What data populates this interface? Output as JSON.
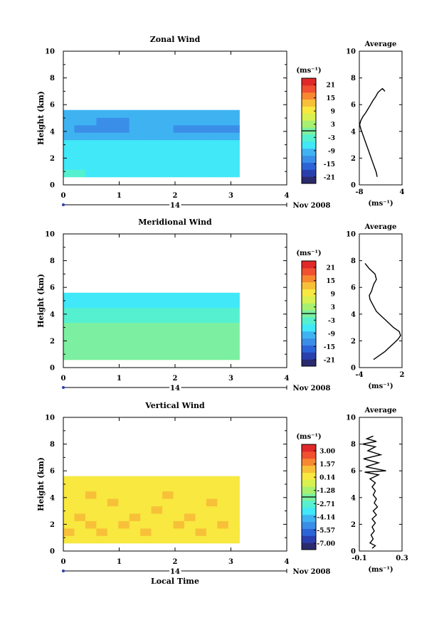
{
  "date_label": "Nov 2008",
  "date_day": "14",
  "local_time_label": "Local Time",
  "colorbar_unit": "(ms⁻¹)",
  "colors": {
    "scale": [
      "#2a2a6e",
      "#2a3fae",
      "#2c64d8",
      "#3b8ee8",
      "#3fb3f2",
      "#40e8f8",
      "#55f0d0",
      "#7cf0a0",
      "#a8f070",
      "#d8f050",
      "#f8e840",
      "#f8c038",
      "#f88830",
      "#f05030",
      "#e02828"
    ]
  },
  "chart_data": [
    {
      "type": "heatmap",
      "title": "Zonal Wind",
      "ylabel": "Height (km)",
      "xlabel": "",
      "x_ticks": [
        0,
        1,
        2,
        3,
        4
      ],
      "y_ticks": [
        0,
        2,
        4,
        6,
        8,
        10
      ],
      "xlim": [
        0,
        4
      ],
      "ylim": [
        0,
        10
      ],
      "colorbar": {
        "unit": "(ms⁻¹)",
        "ticks": [
          "21",
          "15",
          "9",
          "3",
          "-3",
          "-9",
          "-15",
          "-21"
        ],
        "range": [
          -24,
          24
        ]
      },
      "average": {
        "title": "Average",
        "xlim": [
          -8,
          4
        ],
        "x_ticks": [
          "-8",
          "4"
        ],
        "unit": "(ms⁻¹)",
        "profile": [
          [
            -3.0,
            0.6
          ],
          [
            -3.2,
            0.9
          ],
          [
            -3.6,
            1.2
          ],
          [
            -4.0,
            1.5
          ],
          [
            -4.4,
            1.8
          ],
          [
            -4.8,
            2.1
          ],
          [
            -5.2,
            2.4
          ],
          [
            -5.6,
            2.7
          ],
          [
            -6.0,
            3.0
          ],
          [
            -6.4,
            3.3
          ],
          [
            -6.8,
            3.6
          ],
          [
            -7.2,
            3.9
          ],
          [
            -7.6,
            4.2
          ],
          [
            -7.9,
            4.5
          ],
          [
            -7.6,
            4.8
          ],
          [
            -7.0,
            5.1
          ],
          [
            -6.2,
            5.4
          ],
          [
            -5.5,
            5.7
          ],
          [
            -4.2,
            6.3
          ],
          [
            -3.4,
            6.6
          ],
          [
            -2.8,
            6.9
          ],
          [
            -2.0,
            7.1
          ],
          [
            -1.5,
            7.2
          ],
          [
            -0.8,
            7.0
          ]
        ]
      },
      "field": [
        [
          -4,
          -4,
          -5,
          -5,
          -5,
          -6,
          -6,
          -6,
          -6,
          -6,
          -6,
          -6,
          -5,
          -5,
          -5,
          -5
        ],
        [
          -5,
          -5,
          -6,
          -6,
          -6,
          -6,
          -6,
          -5,
          -5,
          -5,
          -5,
          -5,
          -5,
          -5,
          -5,
          -5
        ],
        [
          -6,
          -6,
          -6,
          -6,
          -6,
          -6,
          -6,
          -6,
          -6,
          -5,
          -5,
          -5,
          -5,
          -5,
          -5,
          -5
        ],
        [
          -6,
          -7,
          -7,
          -7,
          -7,
          -7,
          -6,
          -6,
          -6,
          -6,
          -6,
          -6,
          -6,
          -6,
          -6,
          -6
        ],
        [
          -8,
          -8,
          -8,
          -8,
          -8,
          -8,
          -7,
          -7,
          -7,
          -7,
          -7,
          -7,
          -7,
          -8,
          -8,
          -8
        ],
        [
          -10,
          -10,
          -10,
          -10,
          -10,
          -10,
          -10,
          -10,
          -10,
          -10,
          -10,
          -10,
          -10,
          -11,
          -11,
          -11
        ],
        [
          -11,
          -12,
          -12,
          -12,
          -12,
          -12,
          -11,
          -11,
          -11,
          -11,
          -12,
          -12,
          -12,
          -12,
          -12,
          -12
        ],
        [
          -10,
          -11,
          -11,
          -12,
          -12,
          -12,
          -11,
          -10,
          -10,
          -10,
          -11,
          -11,
          -11,
          -11,
          -11,
          -11
        ],
        [
          -10,
          -10,
          -10,
          -11,
          -11,
          -10,
          -10,
          -10,
          -10,
          -10,
          -10,
          -10,
          -10,
          -10,
          -10,
          -10
        ]
      ]
    },
    {
      "type": "heatmap",
      "title": "Meridional Wind",
      "ylabel": "Height (km)",
      "xlabel": "",
      "x_ticks": [
        0,
        1,
        2,
        3,
        4
      ],
      "y_ticks": [
        0,
        2,
        4,
        6,
        8,
        10
      ],
      "xlim": [
        0,
        4
      ],
      "ylim": [
        0,
        10
      ],
      "colorbar": {
        "unit": "(ms⁻¹)",
        "ticks": [
          "21",
          "15",
          "9",
          "3",
          "-3",
          "-9",
          "-15",
          "-21"
        ],
        "range": [
          -24,
          24
        ]
      },
      "average": {
        "title": "Average",
        "xlim": [
          -4,
          2
        ],
        "x_ticks": [
          "-4",
          "2"
        ],
        "unit": "(ms⁻¹)",
        "profile": [
          [
            -2.0,
            0.6
          ],
          [
            -1.2,
            0.9
          ],
          [
            -0.4,
            1.2
          ],
          [
            0.2,
            1.5
          ],
          [
            0.8,
            1.8
          ],
          [
            1.4,
            2.1
          ],
          [
            1.8,
            2.4
          ],
          [
            1.6,
            2.7
          ],
          [
            0.8,
            3.0
          ],
          [
            0.2,
            3.3
          ],
          [
            -0.4,
            3.6
          ],
          [
            -1.0,
            3.9
          ],
          [
            -1.6,
            4.2
          ],
          [
            -1.9,
            4.5
          ],
          [
            -2.2,
            4.8
          ],
          [
            -2.5,
            5.1
          ],
          [
            -2.6,
            5.4
          ],
          [
            -2.3,
            5.7
          ],
          [
            -2.0,
            6.2
          ],
          [
            -1.6,
            6.6
          ],
          [
            -1.8,
            7.0
          ],
          [
            -2.6,
            7.4
          ],
          [
            -3.2,
            7.8
          ]
        ]
      },
      "field": [
        [
          -1,
          0,
          0,
          0,
          0,
          0,
          0,
          0,
          0,
          0,
          0,
          0,
          0,
          0,
          0,
          0
        ],
        [
          -1,
          -1,
          -1,
          -1,
          -1,
          -1,
          -1,
          -1,
          -1,
          -1,
          -1,
          -1,
          -1,
          -1,
          -1,
          -1
        ],
        [
          0,
          0,
          0,
          0,
          0,
          0,
          0,
          0,
          0,
          0,
          0,
          0,
          0,
          0,
          0,
          0
        ],
        [
          1,
          1,
          1,
          1,
          1,
          1,
          1,
          1,
          1,
          1,
          1,
          1,
          1,
          1,
          1,
          1
        ],
        [
          1,
          1,
          1,
          1,
          1,
          1,
          1,
          1,
          1,
          1,
          1,
          1,
          1,
          1,
          1,
          1
        ],
        [
          -3,
          -2,
          -2,
          -3,
          -3,
          -3,
          -2,
          -2,
          -3,
          -3,
          -2,
          -2,
          -3,
          -3,
          -3,
          -3
        ],
        [
          -4,
          -4,
          -4,
          -4,
          -4,
          -4,
          -4,
          -4,
          -4,
          -4,
          -4,
          -4,
          -4,
          -4,
          -4,
          -4
        ],
        [
          -5,
          -5,
          -5,
          -5,
          -5,
          -5,
          -5,
          -5,
          -5,
          -5,
          -5,
          -5,
          -5,
          -5,
          -5,
          -5
        ],
        [
          -5,
          -5,
          -5,
          -5,
          -5,
          -5,
          -5,
          -5,
          -5,
          -5,
          -5,
          -5,
          -5,
          -5,
          -5,
          -5
        ]
      ]
    },
    {
      "type": "heatmap",
      "title": "Vertical Wind",
      "ylabel": "Height (km)",
      "xlabel": "Local Time",
      "x_ticks": [
        0,
        1,
        2,
        3,
        4
      ],
      "y_ticks": [
        0,
        2,
        4,
        6,
        8,
        10
      ],
      "xlim": [
        0,
        4
      ],
      "ylim": [
        0,
        10
      ],
      "colorbar": {
        "unit": "(ms⁻¹)",
        "ticks": [
          "3.00",
          "1.57",
          "0.14",
          "-1.28",
          "-2.71",
          "-4.14",
          "-5.57",
          "-7.00"
        ],
        "range": [
          -7.7,
          3.7
        ]
      },
      "average": {
        "title": "Average",
        "xlim": [
          -0.1,
          0.3
        ],
        "x_ticks": [
          "-0.1",
          "0.3"
        ],
        "unit": "(ms⁻¹)",
        "profile": [
          [
            0.02,
            0.2
          ],
          [
            0.05,
            0.4
          ],
          [
            0.0,
            0.6
          ],
          [
            0.03,
            0.9
          ],
          [
            0.01,
            1.2
          ],
          [
            0.04,
            1.5
          ],
          [
            0.02,
            1.8
          ],
          [
            0.05,
            2.1
          ],
          [
            0.02,
            2.4
          ],
          [
            0.06,
            2.7
          ],
          [
            0.03,
            3.0
          ],
          [
            0.07,
            3.3
          ],
          [
            0.04,
            3.6
          ],
          [
            0.06,
            3.9
          ],
          [
            0.03,
            4.2
          ],
          [
            0.05,
            4.5
          ],
          [
            0.02,
            4.8
          ],
          [
            0.05,
            5.1
          ],
          [
            0.0,
            5.4
          ],
          [
            0.08,
            5.7
          ],
          [
            -0.05,
            5.9
          ],
          [
            0.15,
            6.0
          ],
          [
            -0.04,
            6.3
          ],
          [
            0.08,
            6.6
          ],
          [
            -0.06,
            6.9
          ],
          [
            0.1,
            7.2
          ],
          [
            -0.02,
            7.5
          ],
          [
            0.05,
            7.8
          ],
          [
            -0.07,
            8.0
          ],
          [
            0.06,
            8.2
          ],
          [
            -0.03,
            8.4
          ],
          [
            0.03,
            8.6
          ]
        ]
      },
      "field": [
        [
          0.5,
          0.5,
          0.5,
          0.5,
          0.5,
          0.5,
          0.5,
          0.5,
          0.5,
          0.5,
          0.5,
          0.5,
          0.5,
          0.5,
          0.5,
          0.5
        ],
        [
          0.8,
          0.5,
          0.5,
          0.8,
          0.5,
          0.5,
          0.5,
          0.8,
          0.5,
          0.5,
          0.5,
          0.5,
          0.8,
          0.5,
          0.5,
          0.5
        ],
        [
          0.5,
          0.5,
          0.8,
          0.5,
          0.5,
          0.8,
          0.5,
          0.5,
          0.5,
          0.5,
          0.8,
          0.5,
          0.5,
          0.5,
          0.8,
          0.5
        ],
        [
          0.5,
          0.8,
          0.5,
          0.5,
          0.5,
          0.5,
          0.8,
          0.5,
          0.5,
          0.5,
          0.5,
          0.8,
          0.5,
          0.5,
          0.5,
          0.5
        ],
        [
          0.5,
          0.5,
          0.5,
          0.5,
          0.5,
          0.5,
          0.5,
          0.5,
          0.8,
          0.5,
          0.5,
          0.5,
          0.5,
          0.5,
          0.5,
          0.5
        ],
        [
          0.5,
          0.5,
          0.5,
          0.5,
          0.8,
          0.5,
          0.5,
          0.5,
          0.5,
          0.5,
          0.5,
          0.5,
          0.5,
          0.8,
          0.5,
          0.5
        ],
        [
          0.5,
          0.5,
          0.8,
          0.5,
          0.5,
          0.5,
          0.5,
          0.5,
          0.5,
          0.8,
          0.5,
          0.5,
          0.5,
          0.5,
          0.5,
          0.5
        ],
        [
          0.5,
          0.5,
          0.5,
          0.5,
          0.5,
          0.5,
          0.5,
          0.5,
          0.5,
          0.5,
          0.5,
          0.5,
          0.5,
          0.5,
          0.5,
          0.5
        ],
        [
          0.5,
          0.5,
          0.5,
          0.5,
          0.5,
          0.5,
          0.5,
          0.5,
          0.5,
          0.5,
          0.5,
          0.5,
          0.5,
          0.5,
          0.5,
          0.5
        ]
      ]
    }
  ]
}
